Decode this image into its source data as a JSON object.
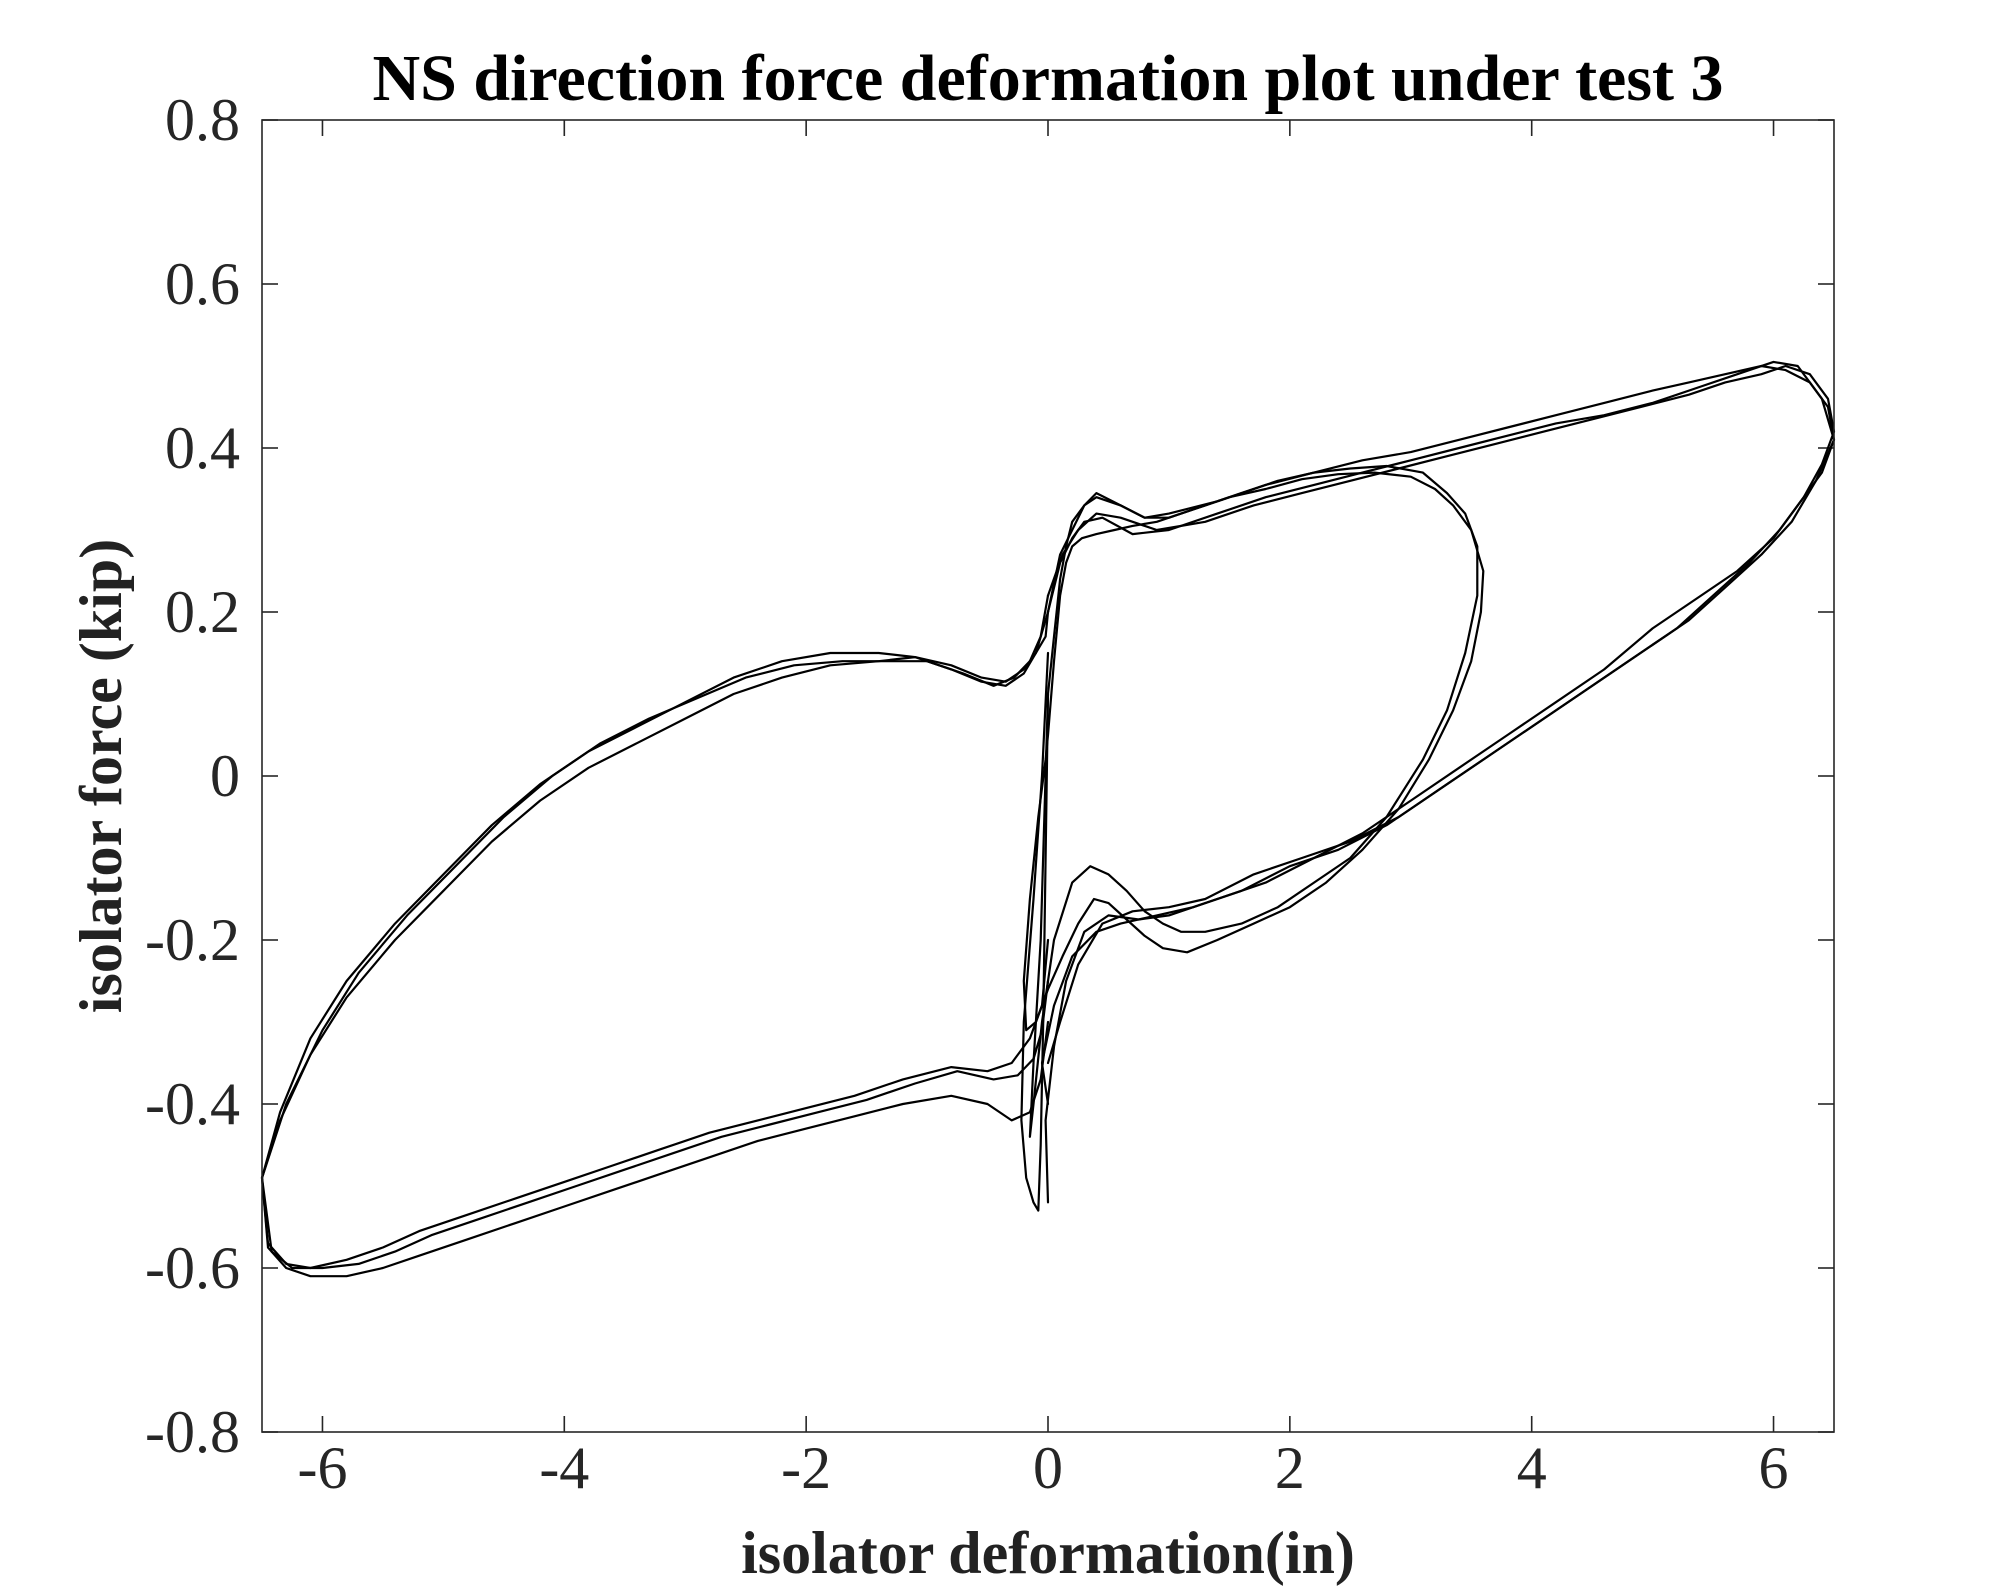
{
  "chart_data": {
    "type": "line",
    "title": "NS direction force deformation plot under test 3",
    "xlabel": "isolator deformation(in)",
    "ylabel": "isolator force (kip)",
    "xlim": [
      -6.5,
      6.5
    ],
    "ylim": [
      -0.8,
      0.8
    ],
    "x_ticks": [
      -6,
      -4,
      -2,
      0,
      2,
      4,
      6
    ],
    "x_tick_labels": [
      "-6",
      "-4",
      "-2",
      "0",
      "2",
      "4",
      "6"
    ],
    "y_ticks": [
      -0.8,
      -0.6,
      -0.4,
      -0.2,
      0,
      0.2,
      0.4,
      0.6,
      0.8
    ],
    "y_tick_labels": [
      "-0.8",
      "-0.6",
      "-0.4",
      "-0.2",
      "0",
      "0.2",
      "0.4",
      "0.6",
      "0.8"
    ],
    "grid": false,
    "legend": "none",
    "line_color": "#000000",
    "series": [
      {
        "x": [
          0.0,
          0.05,
          0.1,
          0.15,
          0.2,
          0.28,
          0.4,
          0.55,
          0.7,
          0.9,
          1.2,
          1.5,
          1.8,
          2.1,
          2.4,
          2.7,
          3.0,
          3.2,
          3.35,
          3.5,
          3.6,
          3.58,
          3.5,
          3.35,
          3.15,
          2.9,
          2.6,
          2.3,
          2.0,
          1.7,
          1.4,
          1.15,
          0.95,
          0.8,
          0.65,
          0.5,
          0.38,
          0.25,
          0.12,
          0.0,
          -0.1,
          -0.18,
          -0.2,
          -0.15,
          -0.08,
          -0.02,
          0.0
        ],
        "y": [
          0.05,
          0.14,
          0.22,
          0.26,
          0.28,
          0.29,
          0.295,
          0.3,
          0.305,
          0.31,
          0.325,
          0.34,
          0.35,
          0.362,
          0.368,
          0.37,
          0.365,
          0.35,
          0.33,
          0.3,
          0.25,
          0.2,
          0.14,
          0.08,
          0.02,
          -0.04,
          -0.09,
          -0.13,
          -0.16,
          -0.18,
          -0.2,
          -0.215,
          -0.21,
          -0.195,
          -0.175,
          -0.155,
          -0.15,
          -0.18,
          -0.22,
          -0.26,
          -0.3,
          -0.31,
          -0.25,
          -0.15,
          -0.05,
          0.02,
          0.05
        ]
      },
      {
        "x": [
          0.0,
          0.05,
          0.1,
          0.15,
          0.2,
          0.3,
          0.4,
          0.6,
          0.8,
          1.0,
          1.3,
          1.6,
          1.9,
          2.2,
          2.5,
          2.8,
          3.1,
          3.3,
          3.45,
          3.55,
          3.55,
          3.45,
          3.3,
          3.1,
          2.8,
          2.5,
          2.2,
          1.9,
          1.6,
          1.3,
          1.1,
          0.95,
          0.8,
          0.65,
          0.5,
          0.35,
          0.2,
          0.05,
          -0.05,
          -0.12,
          -0.15,
          -0.12,
          -0.06,
          0.0
        ],
        "y": [
          0.1,
          0.17,
          0.24,
          0.28,
          0.31,
          0.33,
          0.34,
          0.33,
          0.315,
          0.315,
          0.33,
          0.345,
          0.36,
          0.37,
          0.375,
          0.378,
          0.37,
          0.345,
          0.32,
          0.28,
          0.22,
          0.15,
          0.08,
          0.02,
          -0.05,
          -0.1,
          -0.13,
          -0.16,
          -0.18,
          -0.19,
          -0.19,
          -0.18,
          -0.165,
          -0.14,
          -0.12,
          -0.11,
          -0.13,
          -0.2,
          -0.3,
          -0.4,
          -0.44,
          -0.35,
          -0.2,
          0.1
        ]
      },
      {
        "x": [
          0.0,
          0.1,
          0.2,
          0.3,
          0.4,
          0.6,
          0.8,
          1.0,
          1.4,
          1.8,
          2.2,
          2.6,
          3.0,
          3.4,
          3.8,
          4.2,
          4.6,
          5.0,
          5.3,
          5.6,
          5.9,
          6.1,
          6.3,
          6.45,
          6.5,
          6.4,
          6.2,
          6.0,
          5.7,
          5.4,
          5.0,
          4.6,
          4.2,
          3.8,
          3.4,
          3.0,
          2.6,
          2.2,
          1.8,
          1.4,
          1.0,
          0.75,
          0.5,
          0.3,
          0.15,
          0.05,
          -0.02,
          0.0
        ],
        "y": [
          0.2,
          0.27,
          0.3,
          0.33,
          0.345,
          0.33,
          0.315,
          0.32,
          0.335,
          0.355,
          0.37,
          0.385,
          0.395,
          0.41,
          0.425,
          0.44,
          0.455,
          0.47,
          0.48,
          0.49,
          0.5,
          0.495,
          0.48,
          0.45,
          0.41,
          0.37,
          0.33,
          0.29,
          0.25,
          0.22,
          0.18,
          0.13,
          0.09,
          0.05,
          0.01,
          -0.03,
          -0.07,
          -0.1,
          -0.13,
          -0.15,
          -0.17,
          -0.175,
          -0.17,
          -0.19,
          -0.25,
          -0.33,
          -0.42,
          -0.52
        ]
      },
      {
        "x": [
          0.0,
          0.12,
          0.25,
          0.4,
          0.6,
          0.9,
          1.3,
          1.7,
          2.1,
          2.5,
          2.9,
          3.3,
          3.7,
          4.1,
          4.5,
          4.9,
          5.3,
          5.6,
          5.9,
          6.1,
          6.3,
          6.45,
          6.5,
          6.4,
          6.25,
          6.05,
          5.8,
          5.5,
          5.2,
          4.8,
          4.4,
          4.0,
          3.6,
          3.2,
          2.8,
          2.4,
          2.0,
          1.6,
          1.2,
          0.9,
          0.6,
          0.4,
          0.2,
          0.05,
          -0.05,
          0.0
        ],
        "y": [
          0.22,
          0.27,
          0.3,
          0.32,
          0.315,
          0.3,
          0.31,
          0.33,
          0.345,
          0.36,
          0.375,
          0.39,
          0.405,
          0.42,
          0.435,
          0.45,
          0.465,
          0.48,
          0.49,
          0.5,
          0.49,
          0.46,
          0.42,
          0.38,
          0.34,
          0.3,
          0.26,
          0.22,
          0.18,
          0.14,
          0.1,
          0.06,
          0.02,
          -0.02,
          -0.06,
          -0.09,
          -0.11,
          -0.14,
          -0.16,
          -0.17,
          -0.18,
          -0.19,
          -0.22,
          -0.28,
          -0.35,
          -0.4
        ]
      },
      {
        "x": [
          0.0,
          0.1,
          0.2,
          0.3,
          0.45,
          0.7,
          1.0,
          1.4,
          1.8,
          2.2,
          2.6,
          3.0,
          3.4,
          3.8,
          4.2,
          4.6,
          5.0,
          5.4,
          5.7,
          6.0,
          6.2,
          6.4,
          6.5,
          6.35,
          6.15,
          5.9,
          5.6,
          5.3,
          4.9,
          4.5,
          4.1,
          3.7,
          3.3,
          2.9,
          2.5,
          2.1,
          1.7,
          1.3,
          1.0,
          0.7,
          0.45,
          0.25,
          0.1,
          0.0
        ],
        "y": [
          0.2,
          0.26,
          0.29,
          0.31,
          0.315,
          0.295,
          0.3,
          0.32,
          0.34,
          0.355,
          0.37,
          0.385,
          0.4,
          0.415,
          0.43,
          0.44,
          0.455,
          0.475,
          0.49,
          0.505,
          0.5,
          0.46,
          0.41,
          0.36,
          0.31,
          0.27,
          0.23,
          0.19,
          0.15,
          0.11,
          0.07,
          0.03,
          -0.01,
          -0.05,
          -0.08,
          -0.1,
          -0.12,
          -0.15,
          -0.16,
          -0.165,
          -0.18,
          -0.23,
          -0.3,
          -0.35
        ]
      },
      {
        "x": [
          0.0,
          -0.05,
          -0.15,
          -0.3,
          -0.5,
          -0.8,
          -1.2,
          -1.6,
          -2.0,
          -2.4,
          -2.8,
          -3.2,
          -3.6,
          -4.0,
          -4.4,
          -4.8,
          -5.2,
          -5.5,
          -5.8,
          -6.1,
          -6.3,
          -6.45,
          -6.5,
          -6.35,
          -6.1,
          -5.8,
          -5.4,
          -5.0,
          -4.6,
          -4.2,
          -3.8,
          -3.4,
          -3.0,
          -2.6,
          -2.2,
          -1.8,
          -1.4,
          -1.1,
          -0.8,
          -0.55,
          -0.35,
          -0.2,
          -0.1,
          -0.02,
          0.0
        ],
        "y": [
          -0.2,
          -0.28,
          -0.32,
          -0.35,
          -0.36,
          -0.355,
          -0.37,
          -0.39,
          -0.405,
          -0.42,
          -0.435,
          -0.455,
          -0.475,
          -0.495,
          -0.515,
          -0.535,
          -0.555,
          -0.575,
          -0.59,
          -0.6,
          -0.595,
          -0.57,
          -0.49,
          -0.42,
          -0.34,
          -0.27,
          -0.2,
          -0.14,
          -0.08,
          -0.03,
          0.01,
          0.04,
          0.07,
          0.1,
          0.12,
          0.135,
          0.14,
          0.145,
          0.135,
          0.12,
          0.115,
          0.13,
          0.15,
          0.17,
          0.2
        ]
      },
      {
        "x": [
          0.0,
          -0.06,
          -0.15,
          -0.3,
          -0.5,
          -0.8,
          -1.2,
          -1.6,
          -2.0,
          -2.4,
          -2.8,
          -3.2,
          -3.6,
          -4.0,
          -4.4,
          -4.8,
          -5.2,
          -5.5,
          -5.8,
          -6.1,
          -6.3,
          -6.45,
          -6.5,
          -6.35,
          -6.1,
          -5.8,
          -5.4,
          -5.0,
          -4.6,
          -4.2,
          -3.8,
          -3.4,
          -3.0,
          -2.6,
          -2.2,
          -1.8,
          -1.4,
          -1.1,
          -0.8,
          -0.55,
          -0.35,
          -0.2,
          -0.1,
          0.0
        ],
        "y": [
          -0.3,
          -0.37,
          -0.41,
          -0.42,
          -0.4,
          -0.39,
          -0.4,
          -0.415,
          -0.43,
          -0.445,
          -0.465,
          -0.485,
          -0.505,
          -0.525,
          -0.545,
          -0.565,
          -0.585,
          -0.6,
          -0.61,
          -0.61,
          -0.6,
          -0.575,
          -0.49,
          -0.41,
          -0.32,
          -0.25,
          -0.18,
          -0.12,
          -0.06,
          -0.01,
          0.03,
          0.06,
          0.09,
          0.12,
          0.14,
          0.15,
          0.15,
          0.145,
          0.13,
          0.115,
          0.11,
          0.125,
          0.15,
          0.2
        ]
      },
      {
        "x": [
          0.0,
          -0.05,
          -0.12,
          -0.25,
          -0.45,
          -0.75,
          -1.1,
          -1.5,
          -1.9,
          -2.3,
          -2.7,
          -3.1,
          -3.5,
          -3.9,
          -4.3,
          -4.7,
          -5.1,
          -5.4,
          -5.7,
          -6.0,
          -6.25,
          -6.42,
          -6.5,
          -6.3,
          -6.0,
          -5.7,
          -5.3,
          -4.9,
          -4.5,
          -4.1,
          -3.7,
          -3.3,
          -2.9,
          -2.5,
          -2.1,
          -1.7,
          -1.3,
          -1.0,
          -0.7,
          -0.45,
          -0.28,
          -0.15,
          -0.06,
          0.0
        ],
        "y": [
          -0.25,
          -0.31,
          -0.345,
          -0.365,
          -0.37,
          -0.36,
          -0.375,
          -0.395,
          -0.41,
          -0.425,
          -0.44,
          -0.46,
          -0.48,
          -0.5,
          -0.52,
          -0.54,
          -0.56,
          -0.58,
          -0.595,
          -0.6,
          -0.6,
          -0.58,
          -0.49,
          -0.4,
          -0.31,
          -0.24,
          -0.17,
          -0.11,
          -0.05,
          0.0,
          0.04,
          0.07,
          0.095,
          0.12,
          0.135,
          0.14,
          0.14,
          0.14,
          0.125,
          0.11,
          0.12,
          0.14,
          0.17,
          0.22
        ]
      },
      {
        "x": [
          0.0,
          -0.05,
          -0.12,
          -0.2,
          -0.22,
          -0.18,
          -0.12,
          -0.08,
          -0.06,
          -0.04,
          -0.02,
          0.0
        ],
        "y": [
          0.15,
          0.0,
          -0.15,
          -0.3,
          -0.42,
          -0.49,
          -0.52,
          -0.53,
          -0.45,
          -0.3,
          -0.1,
          0.1
        ]
      }
    ]
  }
}
